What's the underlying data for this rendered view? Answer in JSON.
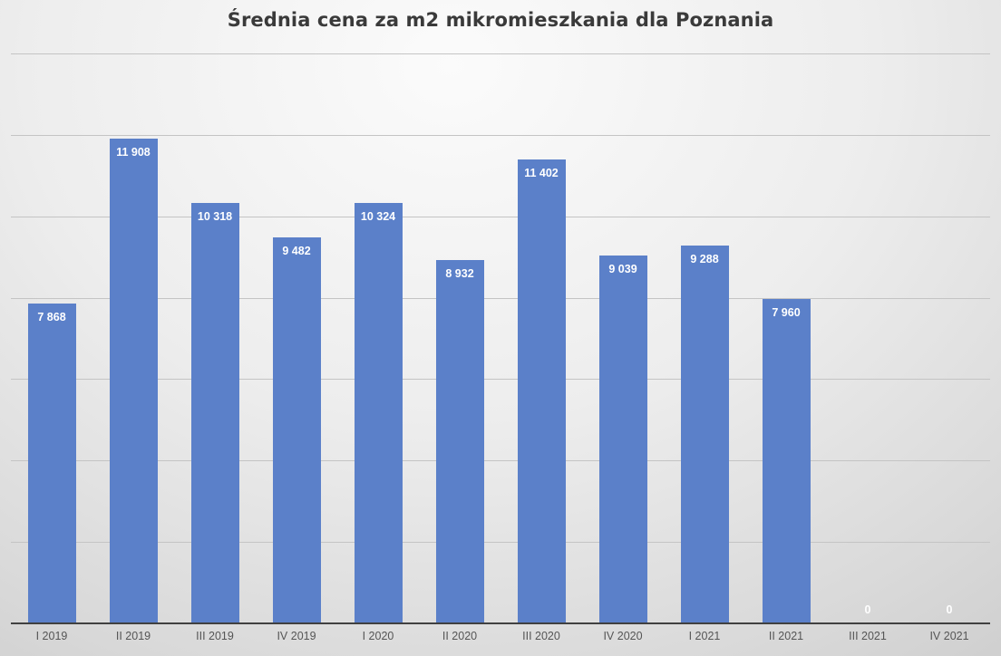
{
  "chart_data": {
    "type": "bar",
    "title": "Średnia cena za m2 mikromieszkania dla Poznania",
    "xlabel": "",
    "ylabel": "",
    "categories": [
      "I 2019",
      "II 2019",
      "III 2019",
      "IV 2019",
      "I 2020",
      "II 2020",
      "III 2020",
      "IV 2020",
      "I 2021",
      "II 2021",
      "III 2021",
      "IV 2021"
    ],
    "values": [
      7868,
      11908,
      10318,
      9482,
      10324,
      8932,
      11402,
      9039,
      9288,
      7960,
      0,
      0
    ],
    "value_labels": [
      "7 868",
      "11 908",
      "10 318",
      "9 482",
      "10 324",
      "8 932",
      "11 402",
      "9 039",
      "9 288",
      "7 960",
      "0",
      "0"
    ],
    "ylim": [
      0,
      14000
    ],
    "grid": true,
    "gridline_step": 2000,
    "y_axis_tick_labels_visible": false,
    "legend": "none",
    "bar_color": "#5b80c9"
  }
}
